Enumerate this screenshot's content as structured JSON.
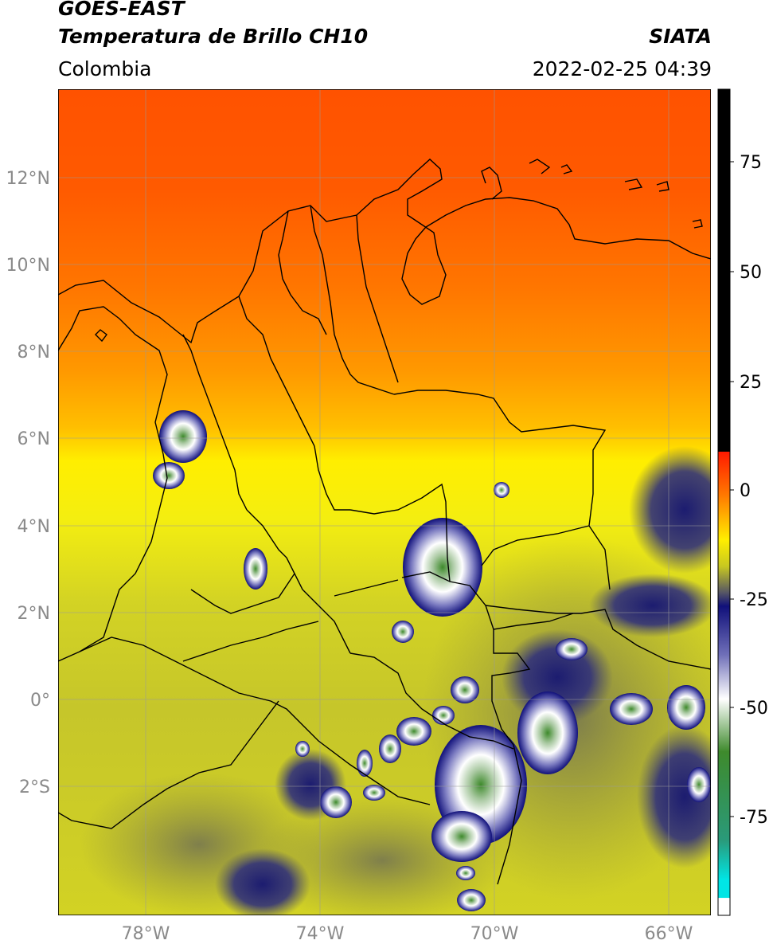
{
  "header": {
    "title_line1": "GOES-EAST",
    "title_line2": "Temperatura de Brillo CH10",
    "source": "SIATA",
    "region": "Colombia",
    "timestamp": "2022-02-25 04:39"
  },
  "map": {
    "lon_ticks": [
      "78°W",
      "74°W",
      "70°W",
      "66°W"
    ],
    "lat_ticks": [
      "12°N",
      "10°N",
      "8°N",
      "6°N",
      "4°N",
      "2°N",
      "0°",
      "2°S"
    ]
  },
  "colorbar": {
    "tick_labels": [
      "75",
      "50",
      "25",
      "0",
      "-25",
      "-50",
      "-75"
    ],
    "stops": [
      {
        "value": 90,
        "color": "#000000"
      },
      {
        "value": 8,
        "color": "#000000"
      },
      {
        "value": 7.9,
        "color": "#ff1a00"
      },
      {
        "value": -2,
        "color": "#ff7a00"
      },
      {
        "value": -12,
        "color": "#ffee00"
      },
      {
        "value": -18,
        "color": "#c8c820"
      },
      {
        "value": -24,
        "color": "#555565"
      },
      {
        "value": -27,
        "color": "#10107a"
      },
      {
        "value": -38,
        "color": "#6f6fb8"
      },
      {
        "value": -48,
        "color": "#ffffff"
      },
      {
        "value": -60,
        "color": "#3e8a2c"
      },
      {
        "value": -80,
        "color": "#2a9a7a"
      },
      {
        "value": -89,
        "color": "#00e5e5"
      },
      {
        "value": -93,
        "color": "#00e5e5"
      },
      {
        "value": -93.1,
        "color": "#ffffff"
      },
      {
        "value": -97,
        "color": "#ffffff"
      }
    ]
  }
}
